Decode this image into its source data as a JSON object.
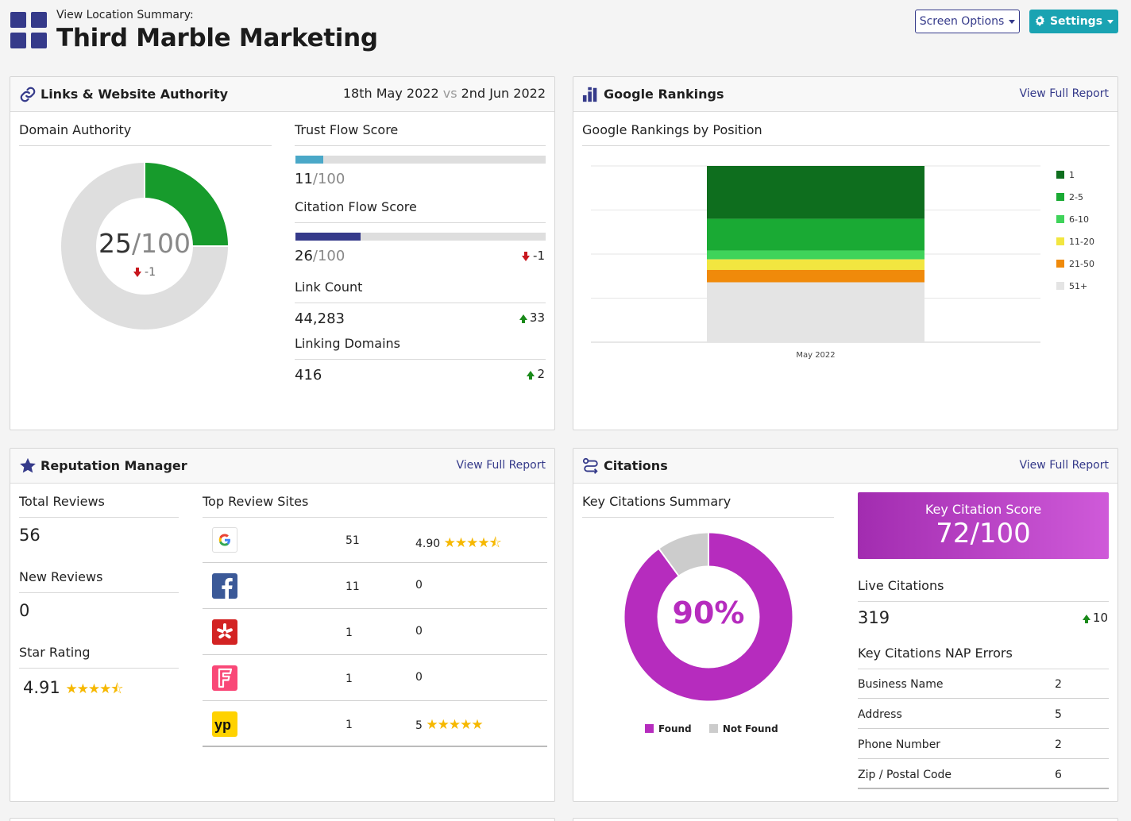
{
  "header": {
    "subtitle": "View Location Summary:",
    "title": "Third Marble Marketing",
    "screen_options_label": "Screen Options",
    "settings_label": "Settings",
    "brand_color": "#353a8a",
    "accent_color": "#1aa3b2"
  },
  "links": {
    "title": "Links & Website Authority",
    "date_from": "18th May 2022",
    "vs": "vs",
    "date_to": "2nd Jun 2022",
    "domain_authority": {
      "label": "Domain Authority",
      "value": "25",
      "max": "/100",
      "delta": "-1",
      "percent": 25
    },
    "trust_flow": {
      "label": "Trust Flow Score",
      "value": "11",
      "max": "/100",
      "percent": 11
    },
    "citation_flow": {
      "label": "Citation Flow Score",
      "value": "26",
      "max": "/100",
      "delta": "-1",
      "percent": 26
    },
    "link_count": {
      "label": "Link Count",
      "value": "44,283",
      "delta": "33"
    },
    "linking_domains": {
      "label": "Linking Domains",
      "value": "416",
      "delta": "2"
    }
  },
  "rankings": {
    "title": "Google Rankings",
    "view_full_report": "View Full Report",
    "subtitle": "Google Rankings by Position"
  },
  "chart_data": {
    "type": "bar",
    "stacked": true,
    "categories": [
      "May 2022"
    ],
    "series": [
      {
        "name": "1",
        "values": [
          30
        ],
        "color": "#0e6e1e"
      },
      {
        "name": "2-5",
        "values": [
          18
        ],
        "color": "#1aaa34"
      },
      {
        "name": "6-10",
        "values": [
          5
        ],
        "color": "#3fd35a"
      },
      {
        "name": "11-20",
        "values": [
          6
        ],
        "color": "#f2e640"
      },
      {
        "name": "21-50",
        "values": [
          7
        ],
        "color": "#f08a0a"
      },
      {
        "name": "51+",
        "values": [
          34
        ],
        "color": "#e4e4e4"
      }
    ],
    "ylim": [
      0,
      100
    ],
    "legend": "right",
    "grid": true
  },
  "reputation": {
    "title": "Reputation Manager",
    "view_full_report": "View Full Report",
    "total_reviews_label": "Total Reviews",
    "total_reviews": "56",
    "new_reviews_label": "New Reviews",
    "new_reviews": "0",
    "star_rating_label": "Star Rating",
    "star_rating": "4.91",
    "star_rating_stars": "★★★★⯪",
    "top_sites_label": "Top Review Sites",
    "sites": [
      {
        "icon": "google-icon",
        "count": "51",
        "rating": "4.90",
        "stars": "★★★★⯪"
      },
      {
        "icon": "facebook-icon",
        "count": "11",
        "rating": "0",
        "stars": ""
      },
      {
        "icon": "yelp-icon",
        "count": "1",
        "rating": "0",
        "stars": ""
      },
      {
        "icon": "foursquare-icon",
        "count": "1",
        "rating": "0",
        "stars": ""
      },
      {
        "icon": "yellowpages-icon",
        "count": "1",
        "rating": "5",
        "stars": "★★★★★"
      }
    ]
  },
  "citations": {
    "title": "Citations",
    "view_full_report": "View Full Report",
    "summary_label": "Key Citations Summary",
    "found_percent_label": "90%",
    "found_percent": 90,
    "legend_found": "Found",
    "legend_not_found": "Not Found",
    "found_color": "#b62cbe",
    "not_found_color": "#cccccc",
    "key_score_label": "Key Citation Score",
    "key_score": "72/100",
    "live_label": "Live Citations",
    "live_value": "319",
    "live_delta": "10",
    "nap_label": "Key Citations NAP Errors",
    "nap": [
      {
        "label": "Business Name",
        "value": "2"
      },
      {
        "label": "Address",
        "value": "5"
      },
      {
        "label": "Phone Number",
        "value": "2"
      },
      {
        "label": "Zip / Postal Code",
        "value": "6"
      }
    ]
  }
}
